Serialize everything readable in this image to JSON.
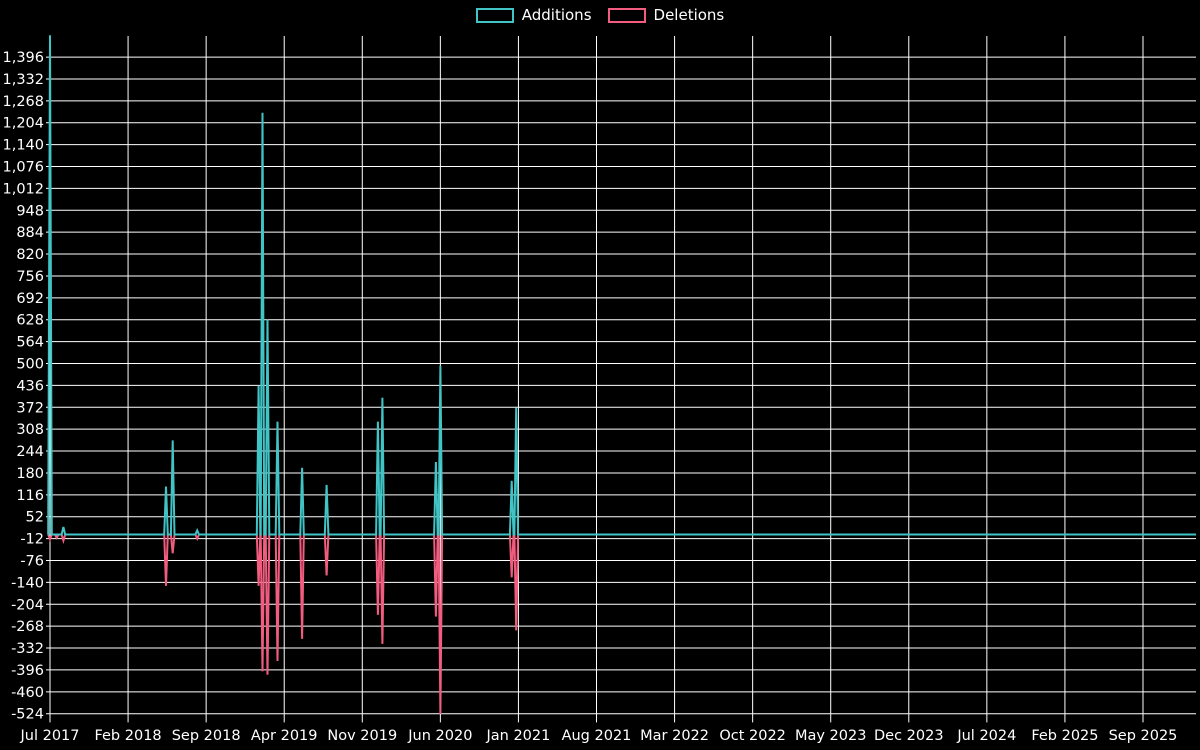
{
  "page": {
    "background": "#000000"
  },
  "legend": {
    "additions_label": "Additions",
    "deletions_label": "Deletions"
  },
  "chart_data": {
    "type": "line",
    "title": "",
    "subtitle": "",
    "legend_position": "top-center",
    "grid": true,
    "colors": {
      "additions": "#41c4c6",
      "deletions": "#f25c7f",
      "grid": "#ffffff",
      "text": "#ffffff",
      "background": "#000000"
    },
    "x_axis": {
      "unit": "months-since-Jul-2017",
      "labels": [
        {
          "label": "Jul 2017",
          "m": 0
        },
        {
          "label": "Feb 2018",
          "m": 7
        },
        {
          "label": "Sep 2018",
          "m": 14
        },
        {
          "label": "Apr 2019",
          "m": 21
        },
        {
          "label": "Nov 2019",
          "m": 28
        },
        {
          "label": "Jun 2020",
          "m": 35
        },
        {
          "label": "Jan 2021",
          "m": 42
        },
        {
          "label": "Aug 2021",
          "m": 49
        },
        {
          "label": "Mar 2022",
          "m": 56
        },
        {
          "label": "Oct 2022",
          "m": 63
        },
        {
          "label": "May 2023",
          "m": 70
        },
        {
          "label": "Dec 2023",
          "m": 77
        },
        {
          "label": "Jul 2024",
          "m": 84
        },
        {
          "label": "Feb 2025",
          "m": 91
        },
        {
          "label": "Sep 2025",
          "m": 98
        }
      ]
    },
    "y_axis": {
      "min": -524,
      "max": 1396,
      "step": 64,
      "tick_labels": [
        "1,396",
        "1,332",
        "1,268",
        "1,204",
        "1,140",
        "1,076",
        "1,012",
        "948",
        "884",
        "820",
        "756",
        "692",
        "628",
        "564",
        "500",
        "436",
        "372",
        "308",
        "244",
        "180",
        "116",
        "52",
        "-12",
        "-76",
        "-140",
        "-204",
        "-268",
        "-332",
        "-396",
        "-460",
        "-524"
      ]
    },
    "x_extent_months": [
      -0.2,
      102.75
    ],
    "series": [
      {
        "name": "Additions",
        "color": "#41c4c6",
        "baseline": 0,
        "spikes": [
          [
            0,
            1460
          ],
          [
            1.2,
            22
          ],
          [
            10.4,
            140
          ],
          [
            11.0,
            275
          ],
          [
            13.2,
            12
          ],
          [
            18.7,
            435
          ],
          [
            19.05,
            1233
          ],
          [
            19.5,
            628
          ],
          [
            20.4,
            330
          ],
          [
            22.6,
            195
          ],
          [
            24.8,
            145
          ],
          [
            29.4,
            330
          ],
          [
            29.8,
            400
          ],
          [
            34.6,
            212
          ],
          [
            35.0,
            493
          ],
          [
            41.4,
            157
          ],
          [
            41.8,
            371
          ]
        ]
      },
      {
        "name": "Deletions",
        "color": "#f25c7f",
        "baseline": 0,
        "spikes": [
          [
            0,
            -14
          ],
          [
            0.6,
            -10
          ],
          [
            1.2,
            -18
          ],
          [
            10.4,
            -150
          ],
          [
            11.0,
            -55
          ],
          [
            13.2,
            -12
          ],
          [
            18.7,
            -150
          ],
          [
            19.05,
            -400
          ],
          [
            19.5,
            -410
          ],
          [
            20.4,
            -370
          ],
          [
            22.6,
            -305
          ],
          [
            24.8,
            -120
          ],
          [
            29.4,
            -235
          ],
          [
            29.8,
            -320
          ],
          [
            34.6,
            -240
          ],
          [
            35.0,
            -525
          ],
          [
            41.4,
            -125
          ],
          [
            41.8,
            -280
          ]
        ]
      }
    ]
  }
}
